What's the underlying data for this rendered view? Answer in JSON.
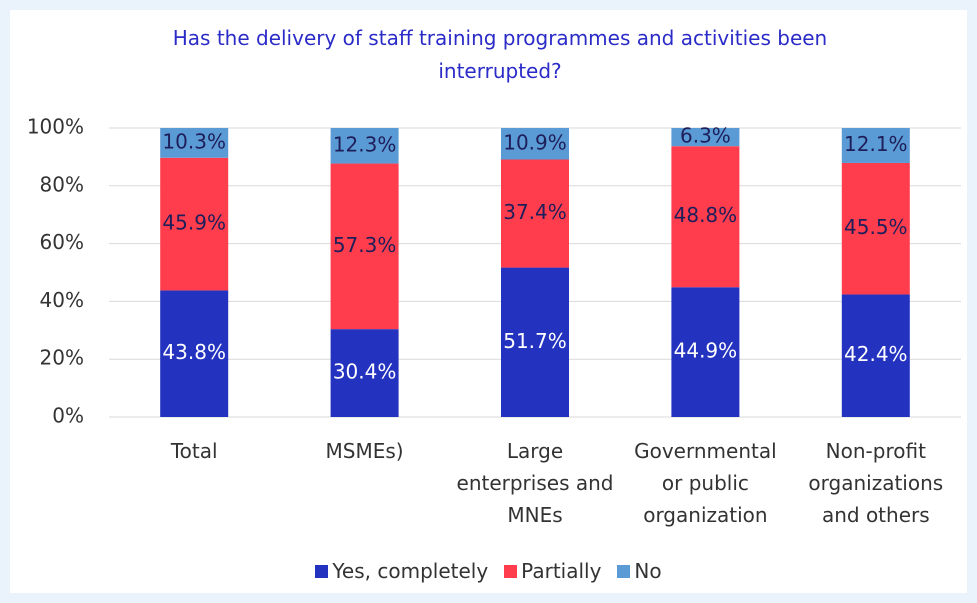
{
  "chart_data": {
    "type": "stacked_bar",
    "title": "Has the delivery of staff training programmes and activities been interrupted?",
    "categories": [
      "Total",
      "MSMEs)",
      "Large enterprises and MNEs",
      "Governmental or public organization",
      "Non-profit organizations and others"
    ],
    "series": [
      {
        "name": "Yes, completely",
        "color": "#2333c0",
        "label_color": "#ffffff",
        "values": [
          43.8,
          30.4,
          51.7,
          44.9,
          42.4
        ],
        "value_labels": [
          "43.8%",
          "30.4%",
          "51.7%",
          "44.9%",
          "42.4%"
        ]
      },
      {
        "name": "Partially",
        "color": "#ff3d4d",
        "label_color": "#1e1e5a",
        "values": [
          45.9,
          57.3,
          37.4,
          48.8,
          45.5
        ],
        "value_labels": [
          "45.9%",
          "57.3%",
          "37.4%",
          "48.8%",
          "45.5%"
        ]
      },
      {
        "name": "No",
        "color": "#5b9bd5",
        "label_color": "#1e1e5a",
        "values": [
          10.3,
          12.3,
          10.9,
          6.3,
          12.1
        ],
        "value_labels": [
          "10.3%",
          "12.3%",
          "10.9%",
          "6.3%",
          "12.1%"
        ]
      }
    ],
    "ylim": [
      0,
      100
    ],
    "yticks": [
      {
        "value": 0,
        "label": "0%"
      },
      {
        "value": 20,
        "label": "20%"
      },
      {
        "value": 40,
        "label": "40%"
      },
      {
        "value": 60,
        "label": "60%"
      },
      {
        "value": 80,
        "label": "80%"
      },
      {
        "value": 100,
        "label": "100%"
      }
    ],
    "grid": true,
    "legend": "bottom"
  }
}
